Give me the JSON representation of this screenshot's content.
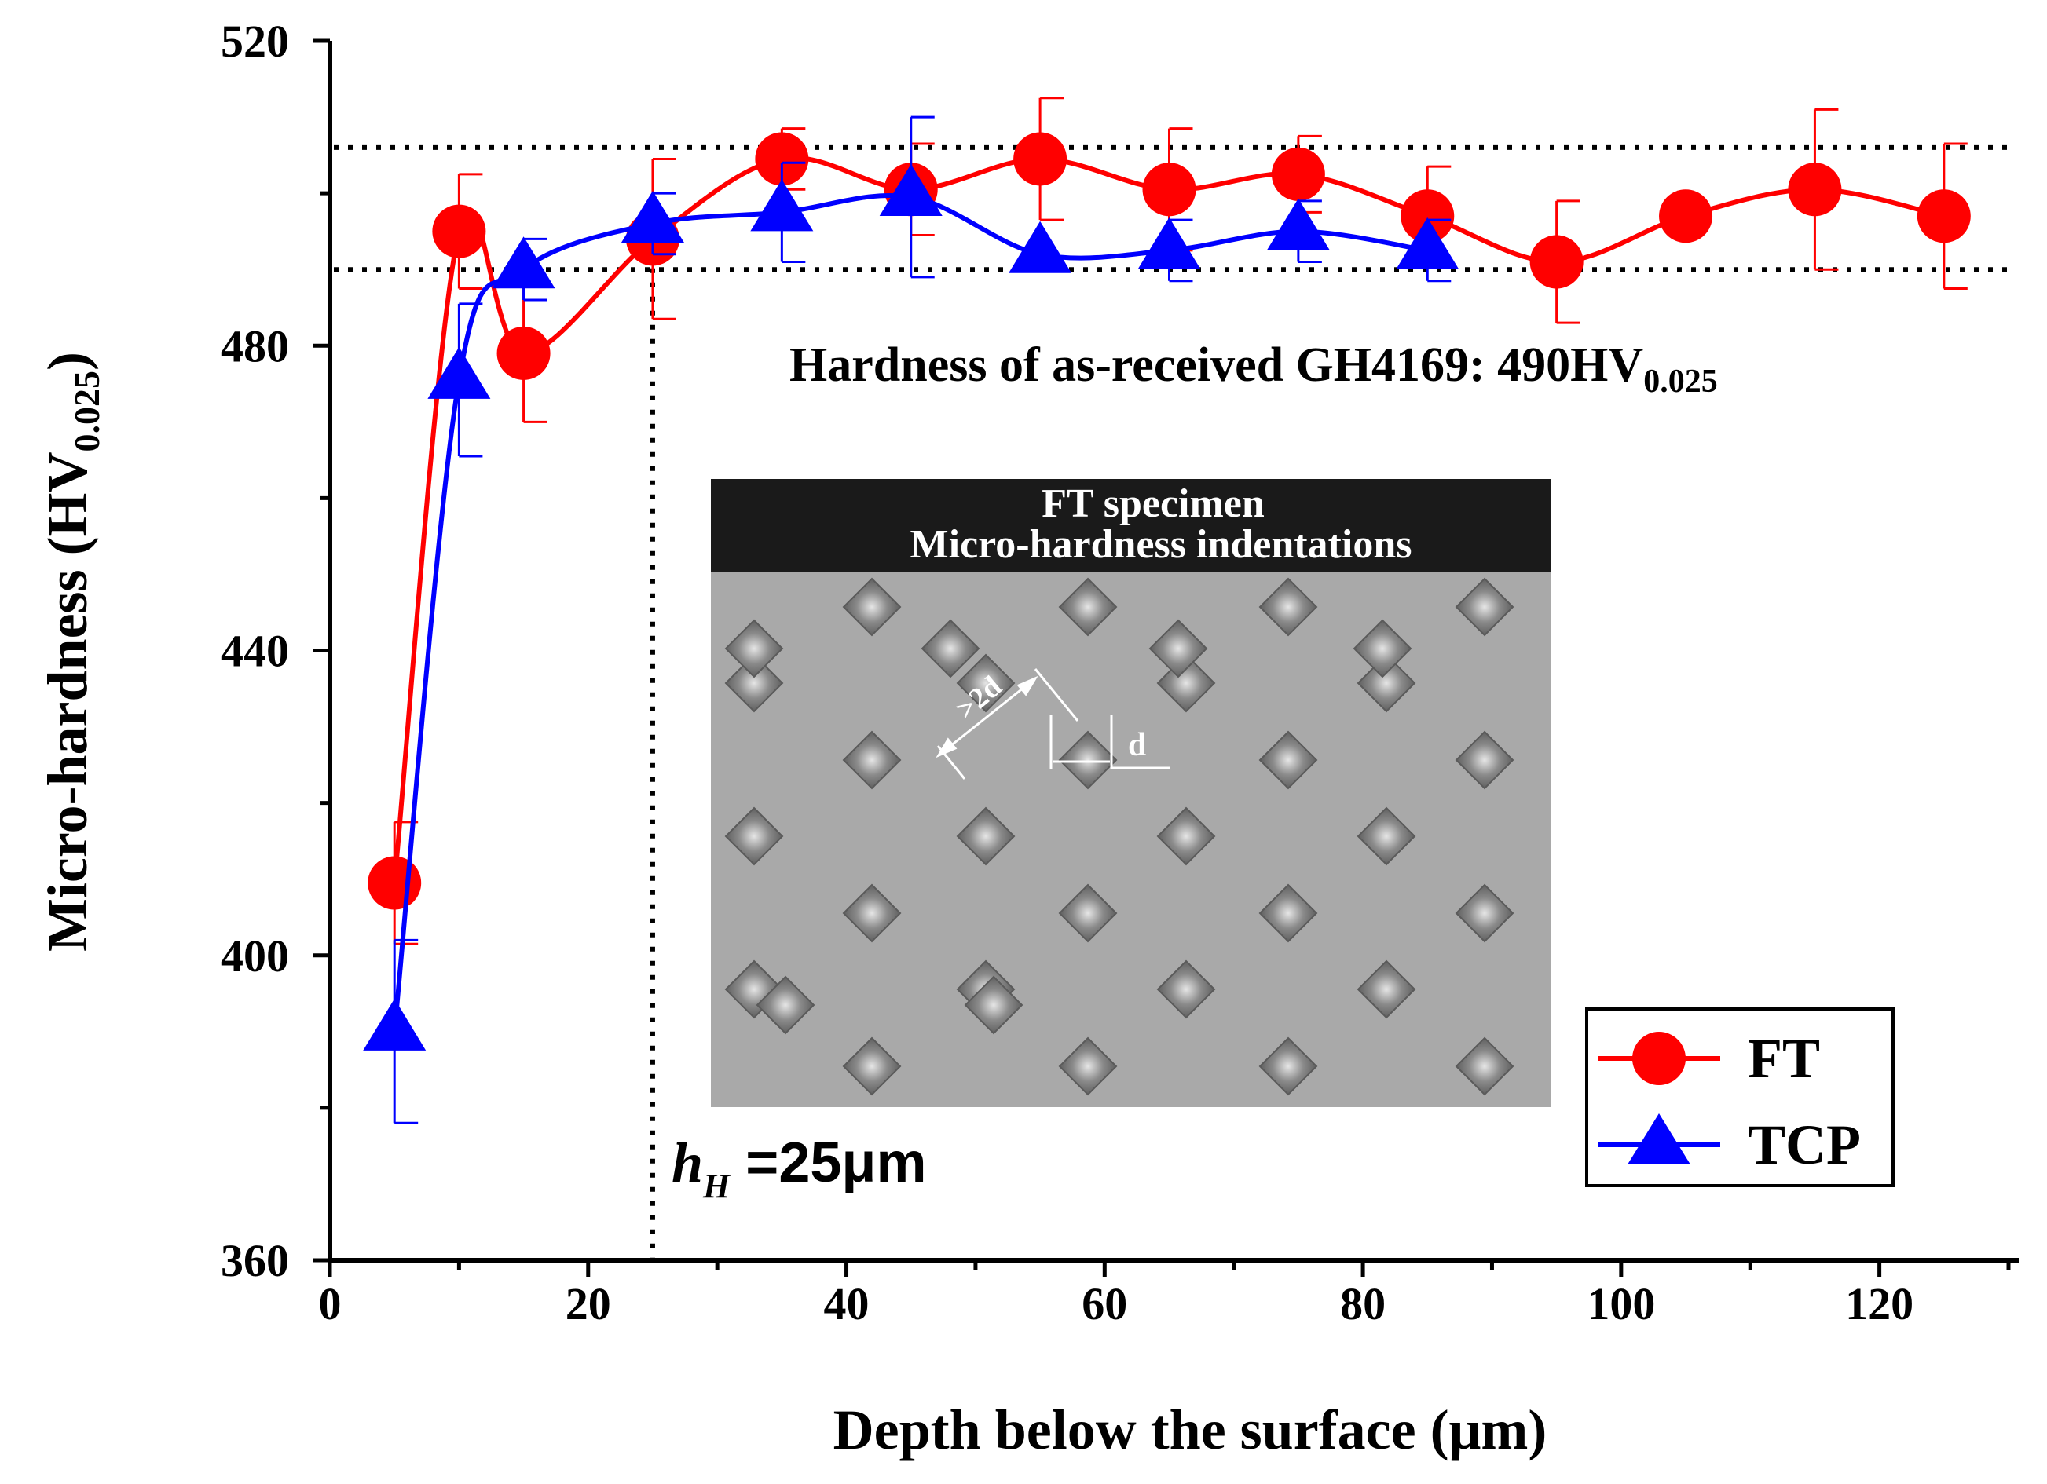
{
  "chart_data": {
    "type": "line",
    "xlabel": "Depth below the surface (μm)",
    "ylabel_main": "Micro-hardness (HV",
    "ylabel_sub": "0.025",
    "ylabel_close": ")",
    "xlim": [
      0,
      130
    ],
    "ylim": [
      360,
      520
    ],
    "x_ticks": [
      0,
      20,
      40,
      60,
      80,
      100,
      120
    ],
    "y_ticks": [
      360,
      400,
      440,
      480,
      520
    ],
    "x_tick_labels": [
      "0",
      "20",
      "40",
      "60",
      "80",
      "100",
      "120"
    ],
    "y_tick_labels": [
      "360",
      "400",
      "440",
      "480",
      "520"
    ],
    "series": [
      {
        "name": "FT",
        "color": "#ff0000",
        "marker": "circle",
        "x": [
          5,
          10,
          15,
          25,
          35,
          45,
          55,
          65,
          75,
          85,
          95,
          105,
          115,
          125
        ],
        "values": [
          409.5,
          495,
          479,
          494,
          504.5,
          500.5,
          504.5,
          500.5,
          502.5,
          497,
          491,
          497,
          500.5,
          497
        ],
        "error": [
          8,
          7.5,
          9,
          10.5,
          4,
          6,
          8,
          8,
          5,
          6.5,
          8,
          0,
          10.5,
          9.5
        ]
      },
      {
        "name": "TCP",
        "color": "#0000ff",
        "marker": "triangle",
        "x": [
          5,
          10,
          15,
          25,
          35,
          45,
          55,
          65,
          75,
          85
        ],
        "values": [
          390,
          475.5,
          490,
          496,
          497.5,
          499.5,
          492,
          492.5,
          495,
          492.5
        ],
        "error": [
          12,
          10,
          4,
          4,
          6.5,
          10.5,
          0,
          4,
          4,
          4
        ]
      }
    ],
    "reference_lines_y": [
      506,
      490
    ],
    "reference_line_x": 25,
    "annotation_main": "Hardness of as-received GH4169: 490HV",
    "annotation_sub": "0.025",
    "depth_label_h": "h",
    "depth_label_sub": "H",
    "depth_label_value": " =25μm",
    "legend_position": "bottom-right"
  },
  "inset": {
    "title_line1": "FT specimen",
    "title_line2": "Micro-hardness indentations",
    "label_spacing": ">2d",
    "label_size": "d"
  }
}
